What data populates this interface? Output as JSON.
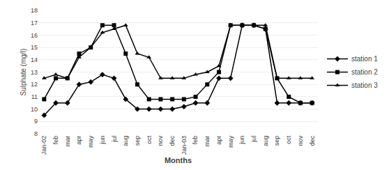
{
  "chart_data": {
    "type": "line",
    "categories": [
      "Jan-02",
      "feb",
      "mar",
      "apr",
      "may",
      "jun",
      "jul",
      "aug",
      "sep",
      "oct",
      "nov",
      "dec",
      "Jan-03",
      "feb",
      "mar",
      "apr",
      "may",
      "jun",
      "jul",
      "aug",
      "sep",
      "oct",
      "nov",
      "dec"
    ],
    "series": [
      {
        "name": "station 1",
        "color": "#000000",
        "marker": "diamond",
        "values": [
          9.5,
          10.5,
          10.5,
          12.0,
          12.2,
          12.8,
          12.5,
          10.8,
          10.0,
          10.0,
          10.0,
          10.0,
          10.2,
          10.5,
          10.5,
          12.5,
          12.5,
          16.8,
          16.8,
          16.5,
          10.5,
          10.5,
          10.5,
          10.5
        ]
      },
      {
        "name": "station 2",
        "color": "#000000",
        "marker": "square",
        "values": [
          10.8,
          12.5,
          12.5,
          14.5,
          15.0,
          16.8,
          16.8,
          14.5,
          12.0,
          10.8,
          10.8,
          10.8,
          10.8,
          11.0,
          12.0,
          13.0,
          16.8,
          16.8,
          16.8,
          16.5,
          12.5,
          11.0,
          10.5,
          10.5
        ]
      },
      {
        "name": "station 3",
        "color": "#000000",
        "marker": "triangle-up",
        "values": [
          12.5,
          12.8,
          12.5,
          14.2,
          15.0,
          16.2,
          16.5,
          16.8,
          14.5,
          14.2,
          12.5,
          12.5,
          12.5,
          12.8,
          13.0,
          13.5,
          16.8,
          16.8,
          16.8,
          16.8,
          12.5,
          12.5,
          12.5,
          12.5
        ]
      }
    ],
    "xlabel": "Months",
    "ylabel": "Sulphate (mg/l)",
    "ylim": [
      8,
      18
    ],
    "yticks": [
      8,
      9,
      10,
      11,
      12,
      13,
      14,
      15,
      16,
      17,
      18
    ],
    "grid": true,
    "legend": "right"
  }
}
